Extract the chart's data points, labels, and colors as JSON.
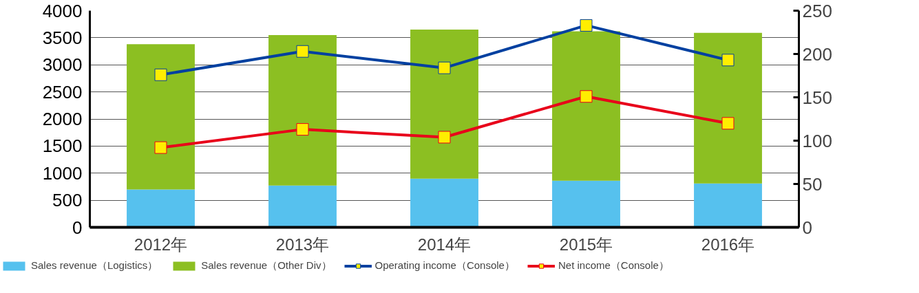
{
  "chart_data": {
    "type": "bar",
    "stacked": true,
    "categories": [
      "2012年",
      "2013年",
      "2014年",
      "2015年",
      "2016年"
    ],
    "series": [
      {
        "name": "Sales revenue（Logistics）",
        "color": "#56c1ee",
        "values": [
          700,
          770,
          900,
          860,
          810
        ]
      },
      {
        "name": "Sales revenue（Other Div）",
        "color": "#8cbf22",
        "values": [
          2680,
          2780,
          2750,
          2760,
          2780
        ]
      },
      {
        "name": "Operating income（Console）",
        "type": "line",
        "axis": "y2",
        "color": "#0040a0",
        "values": [
          176,
          203,
          184,
          233,
          193
        ]
      },
      {
        "name": "Net income（Console）",
        "type": "line",
        "axis": "y2",
        "color": "#e8001a",
        "values": [
          92,
          113,
          104,
          151,
          120
        ]
      }
    ],
    "ylim": [
      0,
      4000
    ],
    "yticks": [
      0,
      500,
      1000,
      1500,
      2000,
      2500,
      3000,
      3500,
      4000
    ],
    "y2lim": [
      0,
      250
    ],
    "y2ticks": [
      0,
      50,
      100,
      150,
      200,
      250
    ],
    "grid": "y",
    "legend": "bottom",
    "marker": "square",
    "line_style": "solid"
  }
}
